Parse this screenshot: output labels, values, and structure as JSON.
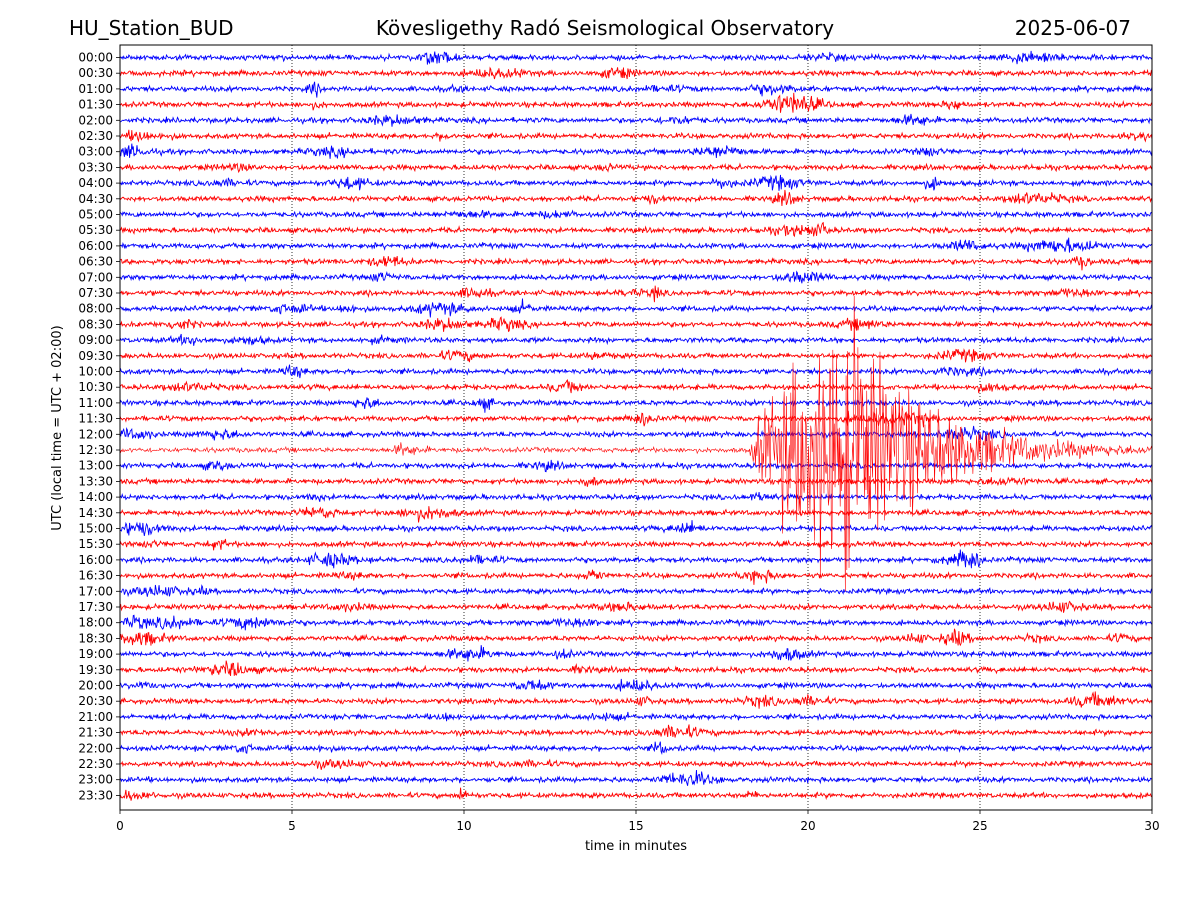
{
  "header": {
    "station": "HU_Station_BUD",
    "observatory": "Kövesligethy Radó Seismological Observatory",
    "date": "2025-06-07"
  },
  "chart_data": {
    "type": "line",
    "title": "Kövesligethy Radó Seismological Observatory",
    "xlabel": "time in minutes",
    "ylabel": "UTC (local time = UTC + 02:00)",
    "xlim": [
      0,
      30
    ],
    "x_ticks": [
      "0",
      "5",
      "10",
      "15",
      "20",
      "25",
      "30"
    ],
    "grid_x": [
      5,
      10,
      15,
      20,
      25
    ],
    "grid_style": "dotted",
    "row_labels": [
      "00:00",
      "00:30",
      "01:00",
      "01:30",
      "02:00",
      "02:30",
      "03:00",
      "03:30",
      "04:00",
      "04:30",
      "05:00",
      "05:30",
      "06:00",
      "06:30",
      "07:00",
      "07:30",
      "08:00",
      "08:30",
      "09:00",
      "09:30",
      "10:00",
      "10:30",
      "11:00",
      "11:30",
      "12:00",
      "12:30",
      "13:00",
      "13:30",
      "14:00",
      "14:30",
      "15:00",
      "15:30",
      "16:00",
      "16:30",
      "17:00",
      "17:30",
      "18:00",
      "18:30",
      "19:00",
      "19:30",
      "20:00",
      "20:30",
      "21:00",
      "21:30",
      "22:00",
      "22:30",
      "23:00",
      "23:30"
    ],
    "colors": [
      "#0000ff",
      "#ff0000"
    ],
    "background_amplitude": 0.22,
    "events": [
      {
        "row": "12:30",
        "start_min": 18.3,
        "peak_min": 21.2,
        "end_min": 30,
        "peak_amplitude": 12.0
      },
      {
        "row": "18:30",
        "start_min": 23.8,
        "peak_min": 24.4,
        "end_min": 25.3,
        "peak_amplitude": 0.7
      },
      {
        "row": "07:30",
        "start_min": 15.4,
        "peak_min": 15.6,
        "end_min": 16.0,
        "peak_amplitude": 0.7
      },
      {
        "row": "23:30",
        "start_min": 9.8,
        "peak_min": 10.0,
        "end_min": 10.4,
        "peak_amplitude": 0.7
      },
      {
        "row": "04:00",
        "start_min": 23.3,
        "peak_min": 23.7,
        "end_min": 24.2,
        "peak_amplitude": 0.55
      },
      {
        "row": "08:00",
        "start_min": 6.3,
        "peak_min": 6.7,
        "end_min": 7.1,
        "peak_amplitude": 0.5
      },
      {
        "row": "22:00",
        "start_min": 15.4,
        "peak_min": 15.8,
        "end_min": 16.3,
        "peak_amplitude": 0.5
      },
      {
        "row": "01:00",
        "start_min": 5.3,
        "peak_min": 5.7,
        "end_min": 6.1,
        "peak_amplitude": 0.45
      }
    ]
  }
}
